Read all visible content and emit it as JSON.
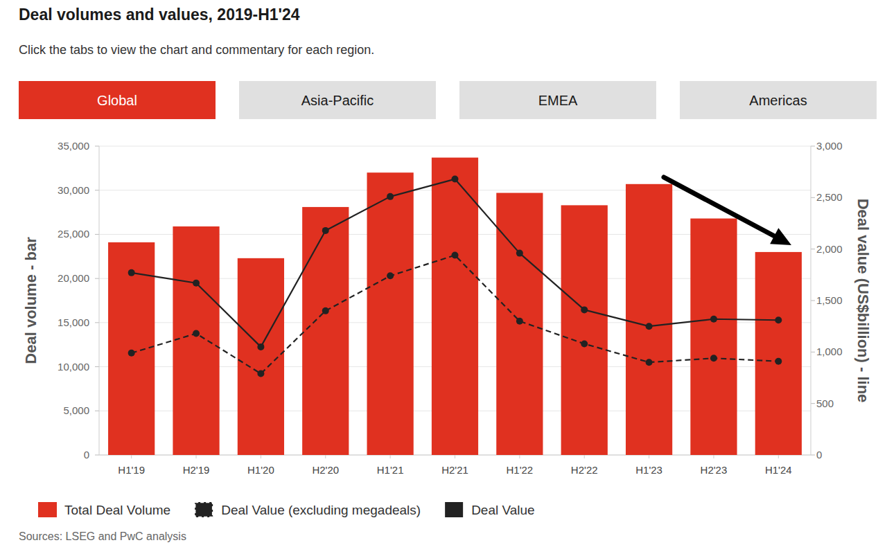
{
  "chart_data": {
    "type": "bar",
    "title": "Deal volumes and values, 2019-H1'24",
    "subtitle": "Click the tabs to view the chart and commentary for each region.",
    "tabs": [
      "Global",
      "Asia-Pacific",
      "EMEA",
      "Americas"
    ],
    "source": "Sources: LSEG and PwC analysis",
    "y_label": "Deal volume - bar",
    "y2_label": "Deal value (US$billion) - line",
    "categories": [
      "H1'19",
      "H2'19",
      "H1'20",
      "H2'20",
      "H1'21",
      "H2'21",
      "H1'22",
      "H2'22",
      "H1'23",
      "H2'23",
      "H1'24"
    ],
    "series": [
      {
        "name": "Total Deal Volume",
        "type": "bar",
        "color": "#e03120",
        "values": [
          24100,
          25900,
          22300,
          28100,
          32000,
          33700,
          29700,
          28300,
          30700,
          26800,
          23000
        ]
      },
      {
        "name": "Deal Value (excluding megadeals)",
        "type": "line",
        "axis": "y2",
        "color": "#222222",
        "marker": "circle",
        "line_style": "dashed",
        "values": [
          990,
          1180,
          790,
          1400,
          1740,
          1940,
          1300,
          1080,
          900,
          940,
          910
        ]
      },
      {
        "name": "Deal Value",
        "type": "line",
        "axis": "y2",
        "color": "#222222",
        "marker": "circle",
        "line_style": "solid",
        "values": [
          1770,
          1670,
          1050,
          2180,
          2510,
          2680,
          1960,
          1410,
          1250,
          1320,
          1310
        ]
      }
    ],
    "ylim": [
      0,
      35000
    ],
    "yticks": [
      0,
      {
        "value": 5000,
        "label": "5,000"
      },
      {
        "value": 10000,
        "label": "10,000"
      },
      {
        "value": 15000,
        "label": "15,000"
      },
      {
        "value": 20000,
        "label": "20,000"
      },
      {
        "value": 25000,
        "label": "25,000"
      },
      {
        "value": 30000,
        "label": "30,000"
      },
      {
        "value": 35000,
        "label": "35,000"
      }
    ],
    "y2lim": [
      0,
      3000
    ],
    "y2ticks": [
      0,
      500,
      {
        "value": 1000,
        "label": "1,000"
      },
      {
        "value": 1500,
        "label": "1,500"
      },
      {
        "value": 2000,
        "label": "2,000"
      },
      {
        "value": 2500,
        "label": "2,500"
      },
      {
        "value": 3000,
        "label": "3,000"
      }
    ],
    "grid": true,
    "legend": "bottom-left"
  }
}
